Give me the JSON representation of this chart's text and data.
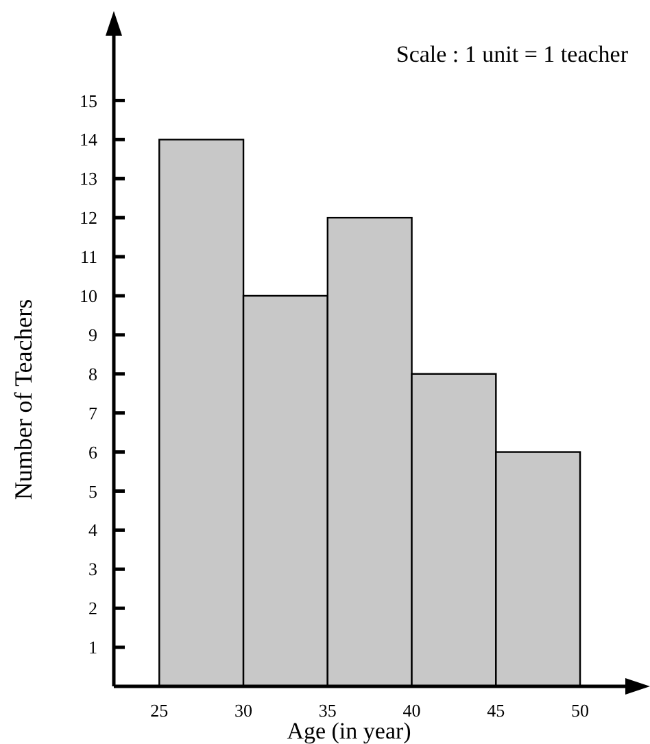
{
  "chart_data": {
    "type": "histogram",
    "xlabel": "Age (in year)",
    "ylabel": "Number of Teachers",
    "annotations": [
      "Scale : 1 unit = 1 teacher"
    ],
    "bins": [
      25,
      30,
      35,
      40,
      45,
      50
    ],
    "values": [
      14,
      10,
      12,
      8,
      6
    ],
    "color": "#c8c8c8",
    "xlim": [
      22.3,
      53.5
    ],
    "xticks": [
      25,
      30,
      35,
      40,
      45,
      50
    ],
    "ylim": [
      0,
      16.8
    ],
    "yticks": [
      1,
      2,
      3,
      4,
      5,
      6,
      7,
      8,
      9,
      10,
      11,
      12,
      13,
      14,
      15
    ],
    "grid": false
  }
}
